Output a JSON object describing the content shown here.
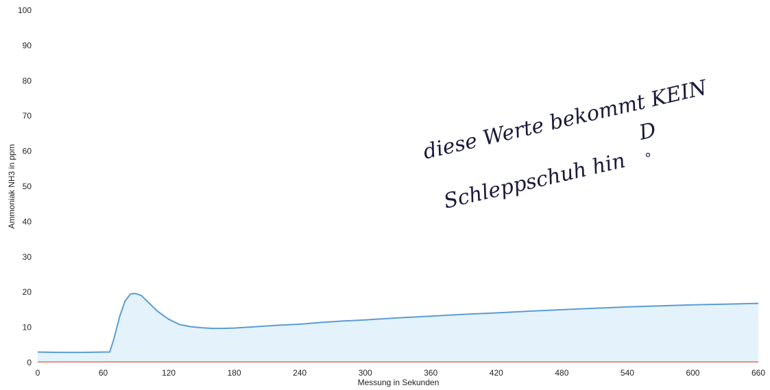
{
  "chart_data": {
    "type": "area",
    "title": "",
    "xlabel": "Messung in Sekunden",
    "ylabel": "Ammoniak NH3 in ppm",
    "xlim": [
      0,
      660
    ],
    "ylim": [
      0,
      100
    ],
    "x_ticks": [
      0,
      60,
      120,
      180,
      240,
      300,
      360,
      420,
      480,
      540,
      600,
      660
    ],
    "y_ticks": [
      0,
      10,
      20,
      30,
      40,
      50,
      60,
      70,
      80,
      90,
      100
    ],
    "grid": false,
    "legend": "none",
    "series": [
      {
        "color": "#5b9bd5",
        "fill": "#e4f3fb",
        "x": [
          0,
          20,
          40,
          60,
          66,
          70,
          75,
          80,
          85,
          90,
          95,
          100,
          110,
          120,
          130,
          140,
          150,
          160,
          170,
          180,
          200,
          220,
          240,
          260,
          280,
          300,
          330,
          360,
          390,
          420,
          450,
          480,
          510,
          540,
          570,
          600,
          630,
          660
        ],
        "values": [
          3.0,
          2.9,
          2.9,
          3.0,
          3.0,
          7.0,
          13.0,
          17.5,
          19.5,
          19.6,
          19.0,
          17.5,
          14.5,
          12.3,
          10.8,
          10.2,
          9.9,
          9.7,
          9.7,
          9.8,
          10.2,
          10.6,
          10.9,
          11.4,
          11.8,
          12.1,
          12.7,
          13.2,
          13.7,
          14.1,
          14.6,
          15.0,
          15.4,
          15.8,
          16.1,
          16.4,
          16.6,
          16.8
        ]
      },
      {
        "color": "#ee6a5a",
        "x": [
          0,
          660
        ],
        "values": [
          0.2,
          0.2
        ]
      }
    ]
  },
  "annotation": {
    "line1": "diese Werte bekommt KEIN",
    "line2": "Schleppschuh hin",
    "mark": "D"
  }
}
